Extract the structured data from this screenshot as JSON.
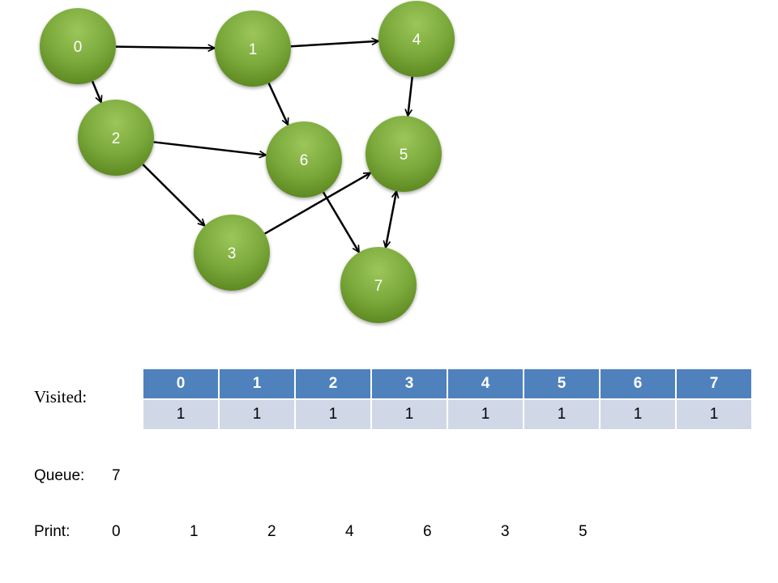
{
  "graph": {
    "nodes": [
      {
        "id": "0",
        "label": "0"
      },
      {
        "id": "1",
        "label": "1"
      },
      {
        "id": "2",
        "label": "2"
      },
      {
        "id": "3",
        "label": "3"
      },
      {
        "id": "4",
        "label": "4"
      },
      {
        "id": "5",
        "label": "5"
      },
      {
        "id": "6",
        "label": "6"
      },
      {
        "id": "7",
        "label": "7"
      }
    ],
    "edges": [
      {
        "from": "0",
        "to": "1"
      },
      {
        "from": "0",
        "to": "2"
      },
      {
        "from": "1",
        "to": "4"
      },
      {
        "from": "1",
        "to": "6"
      },
      {
        "from": "2",
        "to": "6"
      },
      {
        "from": "2",
        "to": "3"
      },
      {
        "from": "4",
        "to": "5"
      },
      {
        "from": "3",
        "to": "5"
      },
      {
        "from": "6",
        "to": "7"
      },
      {
        "from": "7",
        "to": "5",
        "bidirectional": true
      }
    ],
    "node_color": "#7aa83a",
    "edge_color": "#000000"
  },
  "visited": {
    "label": "Visited:",
    "headers": [
      "0",
      "1",
      "2",
      "3",
      "4",
      "5",
      "6",
      "7"
    ],
    "values": [
      "1",
      "1",
      "1",
      "1",
      "1",
      "1",
      "1",
      "1"
    ],
    "header_color": "#4f81bd",
    "value_color": "#d0d8e8"
  },
  "queue": {
    "label": "Queue:",
    "value": "7"
  },
  "print": {
    "label": "Print:",
    "items": [
      "0",
      "1",
      "2",
      "4",
      "6",
      "3",
      "5"
    ]
  }
}
